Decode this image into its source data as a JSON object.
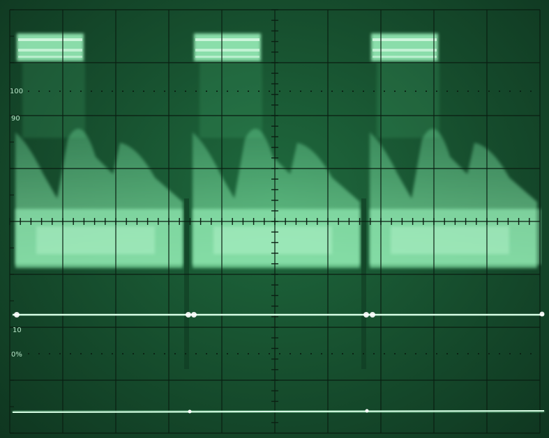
{
  "scope": {
    "graticule_labels": {
      "top_100": "100",
      "top_90": "90",
      "bottom_10": "10",
      "bottom_0": "0%"
    },
    "colors": {
      "phosphor": "#8ff5b4",
      "trace_bright": "#d8ffe6",
      "grid_line": "#0a1f12",
      "background": "#184f2f"
    }
  }
}
